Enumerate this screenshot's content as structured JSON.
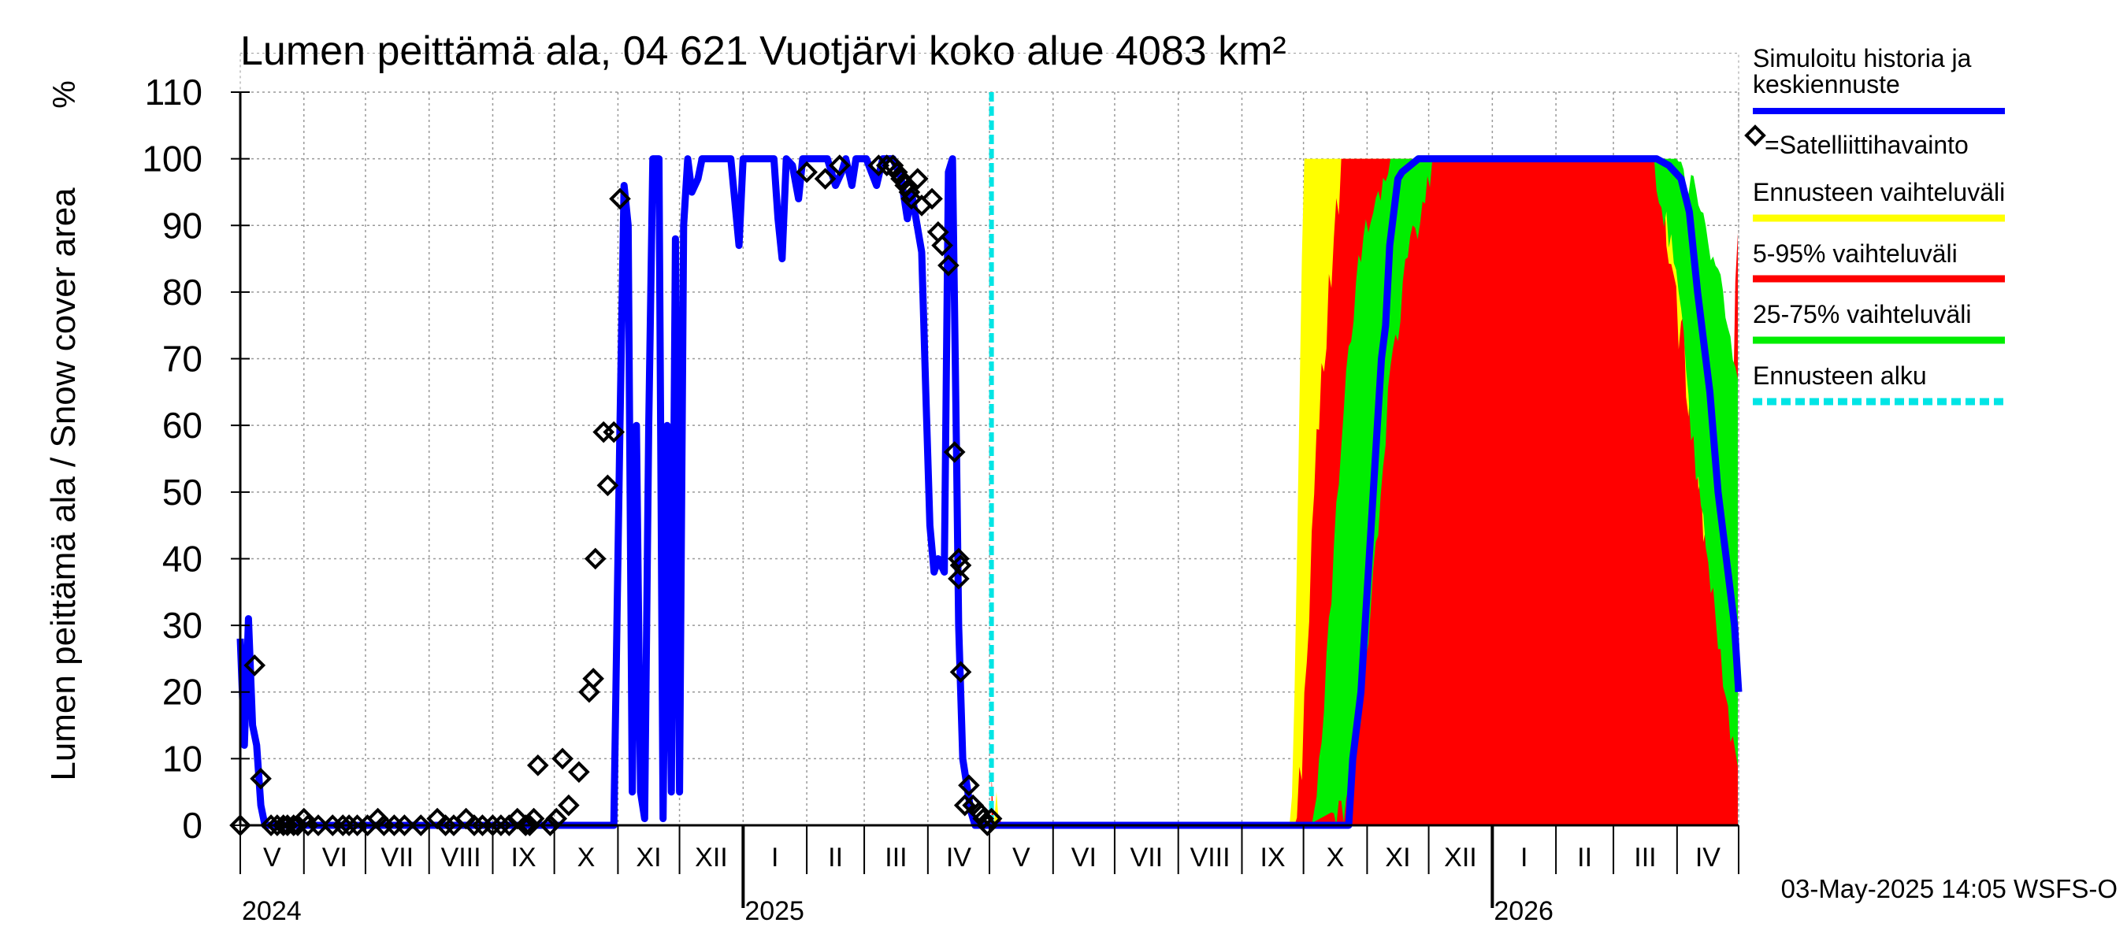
{
  "chart_data": {
    "type": "line",
    "title": "Lumen peittämä ala, 04 621 Vuotjärvi koko alue 4083 km²",
    "ylabel": "Lumen peittämä ala / Snow cover area",
    "yunit": "%",
    "ylim": [
      0,
      110
    ],
    "yticks": [
      0,
      10,
      20,
      30,
      40,
      50,
      60,
      70,
      80,
      90,
      100,
      110
    ],
    "x_range_days": [
      0,
      730
    ],
    "months": [
      {
        "label": "V",
        "start": 0
      },
      {
        "label": "VI",
        "start": 31
      },
      {
        "label": "VII",
        "start": 61
      },
      {
        "label": "VIII",
        "start": 92
      },
      {
        "label": "IX",
        "start": 123
      },
      {
        "label": "X",
        "start": 153
      },
      {
        "label": "XI",
        "start": 184
      },
      {
        "label": "XII",
        "start": 214
      },
      {
        "label": "I",
        "start": 245
      },
      {
        "label": "II",
        "start": 276
      },
      {
        "label": "III",
        "start": 304
      },
      {
        "label": "IV",
        "start": 335
      },
      {
        "label": "V",
        "start": 365
      },
      {
        "label": "VI",
        "start": 396
      },
      {
        "label": "VII",
        "start": 426
      },
      {
        "label": "VIII",
        "start": 457
      },
      {
        "label": "IX",
        "start": 488
      },
      {
        "label": "X",
        "start": 518
      },
      {
        "label": "XI",
        "start": 549
      },
      {
        "label": "XII",
        "start": 579
      },
      {
        "label": "I",
        "start": 610
      },
      {
        "label": "II",
        "start": 641
      },
      {
        "label": "III",
        "start": 669
      },
      {
        "label": "IV",
        "start": 700
      },
      {
        "label": "",
        "start": 730
      }
    ],
    "years": [
      {
        "label": "2024",
        "day": 0
      },
      {
        "label": "2025",
        "day": 245
      },
      {
        "label": "2026",
        "day": 610
      }
    ],
    "forecast_start_day": 366,
    "colors": {
      "history": "#0000ff",
      "satellite": "#000000",
      "band_full": "#ffff00",
      "band_5_95": "#ff0000",
      "band_25_75": "#00ee00",
      "forecast_start": "#00e5e5"
    },
    "series": [
      {
        "name": "Simuloitu historia ja keskiennuste",
        "type": "line",
        "points": [
          [
            0,
            28
          ],
          [
            2,
            12
          ],
          [
            4,
            31
          ],
          [
            6,
            15
          ],
          [
            8,
            12
          ],
          [
            10,
            3
          ],
          [
            12,
            0
          ],
          [
            20,
            0
          ],
          [
            160,
            0
          ],
          [
            182,
            0
          ],
          [
            185,
            60
          ],
          [
            187,
            96
          ],
          [
            189,
            90
          ],
          [
            191,
            5
          ],
          [
            193,
            60
          ],
          [
            195,
            5
          ],
          [
            197,
            1
          ],
          [
            199,
            60
          ],
          [
            201,
            100
          ],
          [
            204,
            100
          ],
          [
            206,
            1
          ],
          [
            208,
            60
          ],
          [
            210,
            5
          ],
          [
            212,
            88
          ],
          [
            214,
            5
          ],
          [
            216,
            90
          ],
          [
            218,
            100
          ],
          [
            220,
            95
          ],
          [
            223,
            97
          ],
          [
            225,
            100
          ],
          [
            227,
            100
          ],
          [
            232,
            100
          ],
          [
            239,
            100
          ],
          [
            243,
            87
          ],
          [
            245,
            100
          ],
          [
            260,
            100
          ],
          [
            262,
            91
          ],
          [
            264,
            85
          ],
          [
            266,
            100
          ],
          [
            269,
            99
          ],
          [
            272,
            94
          ],
          [
            274,
            100
          ],
          [
            286,
            100
          ],
          [
            290,
            96
          ],
          [
            293,
            98
          ],
          [
            295,
            100
          ],
          [
            298,
            96
          ],
          [
            300,
            100
          ],
          [
            305,
            100
          ],
          [
            310,
            96
          ],
          [
            313,
            100
          ],
          [
            318,
            100
          ],
          [
            322,
            97
          ],
          [
            325,
            91
          ],
          [
            327,
            95
          ],
          [
            332,
            86
          ],
          [
            334,
            65
          ],
          [
            336,
            45
          ],
          [
            338,
            38
          ],
          [
            340,
            40
          ],
          [
            343,
            38
          ],
          [
            345,
            98
          ],
          [
            347,
            100
          ],
          [
            349,
            55
          ],
          [
            350,
            30
          ],
          [
            351,
            20
          ],
          [
            352,
            10
          ],
          [
            354,
            6
          ],
          [
            356,
            2
          ],
          [
            358,
            0
          ],
          [
            366,
            0
          ],
          [
            540,
            0
          ],
          [
            542,
            10
          ],
          [
            546,
            20
          ],
          [
            550,
            40
          ],
          [
            554,
            60
          ],
          [
            556,
            70
          ],
          [
            558,
            75
          ],
          [
            560,
            87
          ],
          [
            562,
            92
          ],
          [
            564,
            97
          ],
          [
            566,
            98
          ],
          [
            570,
            99
          ],
          [
            574,
            100
          ],
          [
            580,
            100
          ],
          [
            690,
            100
          ],
          [
            696,
            99
          ],
          [
            702,
            97
          ],
          [
            706,
            92
          ],
          [
            710,
            80
          ],
          [
            716,
            65
          ],
          [
            720,
            50
          ],
          [
            724,
            40
          ],
          [
            728,
            30
          ],
          [
            730,
            20
          ]
        ]
      },
      {
        "name": "=Satelliittihavainto",
        "type": "scatter",
        "points": [
          [
            0,
            0
          ],
          [
            7,
            24
          ],
          [
            10,
            7
          ],
          [
            15,
            0
          ],
          [
            18,
            0
          ],
          [
            21,
            0
          ],
          [
            23,
            0
          ],
          [
            26,
            0
          ],
          [
            28,
            0
          ],
          [
            31,
            1
          ],
          [
            33,
            0
          ],
          [
            38,
            0
          ],
          [
            45,
            0
          ],
          [
            50,
            0
          ],
          [
            53,
            0
          ],
          [
            57,
            0
          ],
          [
            62,
            0
          ],
          [
            67,
            1
          ],
          [
            70,
            0
          ],
          [
            75,
            0
          ],
          [
            80,
            0
          ],
          [
            88,
            0
          ],
          [
            96,
            1
          ],
          [
            100,
            0
          ],
          [
            104,
            0
          ],
          [
            110,
            1
          ],
          [
            114,
            0
          ],
          [
            118,
            0
          ],
          [
            123,
            0
          ],
          [
            127,
            0
          ],
          [
            131,
            0
          ],
          [
            135,
            1
          ],
          [
            139,
            0
          ],
          [
            141,
            0
          ],
          [
            143,
            1
          ],
          [
            145,
            9
          ],
          [
            151,
            0
          ],
          [
            154,
            1
          ],
          [
            157,
            10
          ],
          [
            160,
            3
          ],
          [
            165,
            8
          ],
          [
            170,
            20
          ],
          [
            172,
            22
          ],
          [
            173,
            40
          ],
          [
            177,
            59
          ],
          [
            179,
            51
          ],
          [
            182,
            59
          ],
          [
            185,
            94
          ],
          [
            276,
            98
          ],
          [
            285,
            97
          ],
          [
            292,
            99
          ],
          [
            311,
            99
          ],
          [
            315,
            99
          ],
          [
            318,
            99
          ],
          [
            320,
            98
          ],
          [
            322,
            97
          ],
          [
            324,
            96
          ],
          [
            326,
            95
          ],
          [
            327,
            94
          ],
          [
            330,
            97
          ],
          [
            332,
            93
          ],
          [
            337,
            94
          ],
          [
            340,
            89
          ],
          [
            342,
            87
          ],
          [
            345,
            84
          ],
          [
            348,
            56
          ],
          [
            350,
            40
          ],
          [
            350,
            37
          ],
          [
            351,
            39
          ],
          [
            351,
            23
          ],
          [
            353,
            3
          ],
          [
            355,
            6
          ],
          [
            357,
            3
          ],
          [
            360,
            2
          ],
          [
            362,
            1
          ],
          [
            364,
            0
          ],
          [
            366,
            1
          ]
        ]
      }
    ],
    "bands": [
      {
        "name": "Ennusteen vaihteluväli",
        "lower": [
          [
            366,
            0
          ],
          [
            730,
            0
          ]
        ],
        "upper": [
          [
            366,
            10
          ],
          [
            367,
            8
          ],
          [
            369,
            5
          ],
          [
            372,
            0
          ],
          [
            512,
            0
          ],
          [
            514,
            30
          ],
          [
            516,
            70
          ],
          [
            518,
            100
          ],
          [
            690,
            100
          ],
          [
            696,
            99
          ],
          [
            700,
            92
          ],
          [
            706,
            75
          ],
          [
            714,
            55
          ],
          [
            720,
            45
          ],
          [
            724,
            35
          ],
          [
            730,
            100
          ]
        ]
      },
      {
        "name": "5-95% vaihteluväli",
        "lower": [
          [
            366,
            0
          ],
          [
            730,
            0
          ]
        ],
        "upper": [
          [
            366,
            9
          ],
          [
            368,
            5
          ],
          [
            371,
            0
          ],
          [
            514,
            0
          ],
          [
            518,
            20
          ],
          [
            524,
            60
          ],
          [
            530,
            85
          ],
          [
            536,
            100
          ],
          [
            692,
            100
          ],
          [
            700,
            85
          ],
          [
            706,
            70
          ],
          [
            712,
            55
          ],
          [
            718,
            45
          ],
          [
            724,
            35
          ],
          [
            730,
            100
          ]
        ]
      },
      {
        "name": "25-75% vaihteluväli",
        "lower": [
          [
            366,
            0
          ],
          [
            520,
            0
          ],
          [
            532,
            2
          ],
          [
            542,
            8
          ],
          [
            552,
            40
          ],
          [
            560,
            70
          ],
          [
            570,
            90
          ],
          [
            580,
            100
          ],
          [
            690,
            100
          ],
          [
            700,
            85
          ],
          [
            706,
            65
          ],
          [
            714,
            45
          ],
          [
            720,
            30
          ],
          [
            726,
            15
          ],
          [
            730,
            10
          ]
        ],
        "upper": [
          [
            366,
            1
          ],
          [
            368,
            0
          ],
          [
            522,
            0
          ],
          [
            528,
            20
          ],
          [
            536,
            60
          ],
          [
            544,
            85
          ],
          [
            552,
            96
          ],
          [
            560,
            100
          ],
          [
            700,
            100
          ],
          [
            710,
            98
          ],
          [
            716,
            90
          ],
          [
            724,
            80
          ],
          [
            730,
            70
          ]
        ]
      }
    ],
    "legend": [
      {
        "label": "Simuloitu historia ja keskiennuste",
        "kind": "line",
        "color": "#0000ff"
      },
      {
        "label": "=Satelliittihavainto",
        "kind": "marker",
        "color": "#000000"
      },
      {
        "label": "Ennusteen vaihteluväli",
        "kind": "line",
        "color": "#ffff00"
      },
      {
        "label": "5-95% vaihteluväli",
        "kind": "line",
        "color": "#ff0000"
      },
      {
        "label": "25-75% vaihteluväli",
        "kind": "line",
        "color": "#00ee00"
      },
      {
        "label": "Ennusteen alku",
        "kind": "dashed",
        "color": "#00e5e5"
      }
    ],
    "footer": "03-May-2025 14:05 WSFS-O"
  }
}
